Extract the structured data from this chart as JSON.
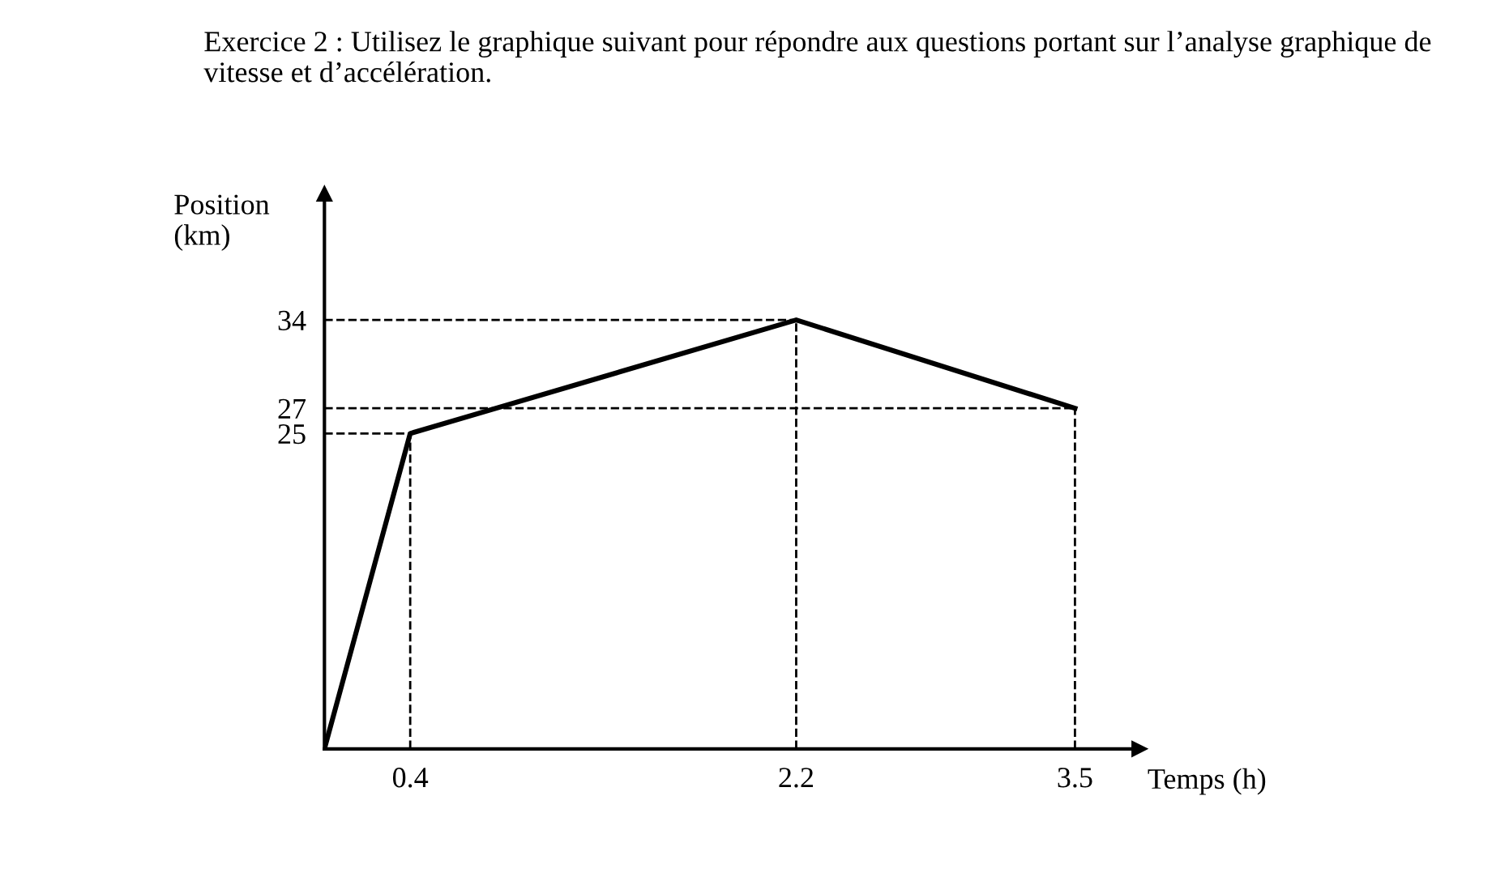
{
  "chart_data": {
    "type": "line",
    "title": "Exercice 2 : Utilisez le graphique suivant pour répondre aux questions portant sur l’analyse graphique de vitesse et d’accélération.",
    "xlabel": "Temps (h)",
    "ylabel": "Position\n(km)",
    "x": [
      0,
      0.4,
      2.2,
      3.5
    ],
    "series": [
      {
        "color": "#000000",
        "values": [
          0,
          25,
          34,
          27
        ]
      }
    ],
    "xlim": [
      0,
      3.8
    ],
    "ylim": [
      0,
      44
    ],
    "xticks": [
      0.4,
      2.2,
      3.5
    ],
    "yticks": [
      25,
      27,
      34
    ],
    "ref_lines": [
      {
        "axis": "x",
        "value": 0.4,
        "line_style": "dashed",
        "color": "#000000"
      },
      {
        "axis": "x",
        "value": 2.2,
        "line_style": "dashed",
        "color": "#000000"
      },
      {
        "axis": "x",
        "value": 3.5,
        "line_style": "dashed",
        "color": "#000000"
      },
      {
        "axis": "y",
        "value": 25,
        "line_style": "dashed",
        "color": "#000000"
      },
      {
        "axis": "y",
        "value": 27,
        "line_style": "dashed",
        "color": "#000000"
      },
      {
        "axis": "y",
        "value": 34,
        "line_style": "dashed",
        "color": "#000000"
      }
    ],
    "grid": false,
    "legend": false,
    "marker": "none",
    "line_style": "solid"
  }
}
